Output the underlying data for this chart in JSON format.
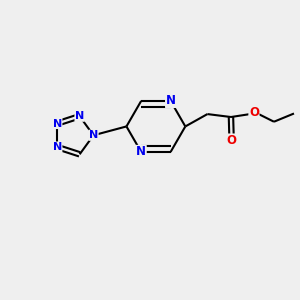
{
  "bg_color": "#efefef",
  "bond_color": "#000000",
  "N_color": "#0000ee",
  "O_color": "#ee0000",
  "line_width": 1.5,
  "font_size": 8.5,
  "figsize": [
    3.0,
    3.0
  ],
  "dpi": 100,
  "xlim": [
    0,
    10
  ],
  "ylim": [
    0,
    10
  ]
}
